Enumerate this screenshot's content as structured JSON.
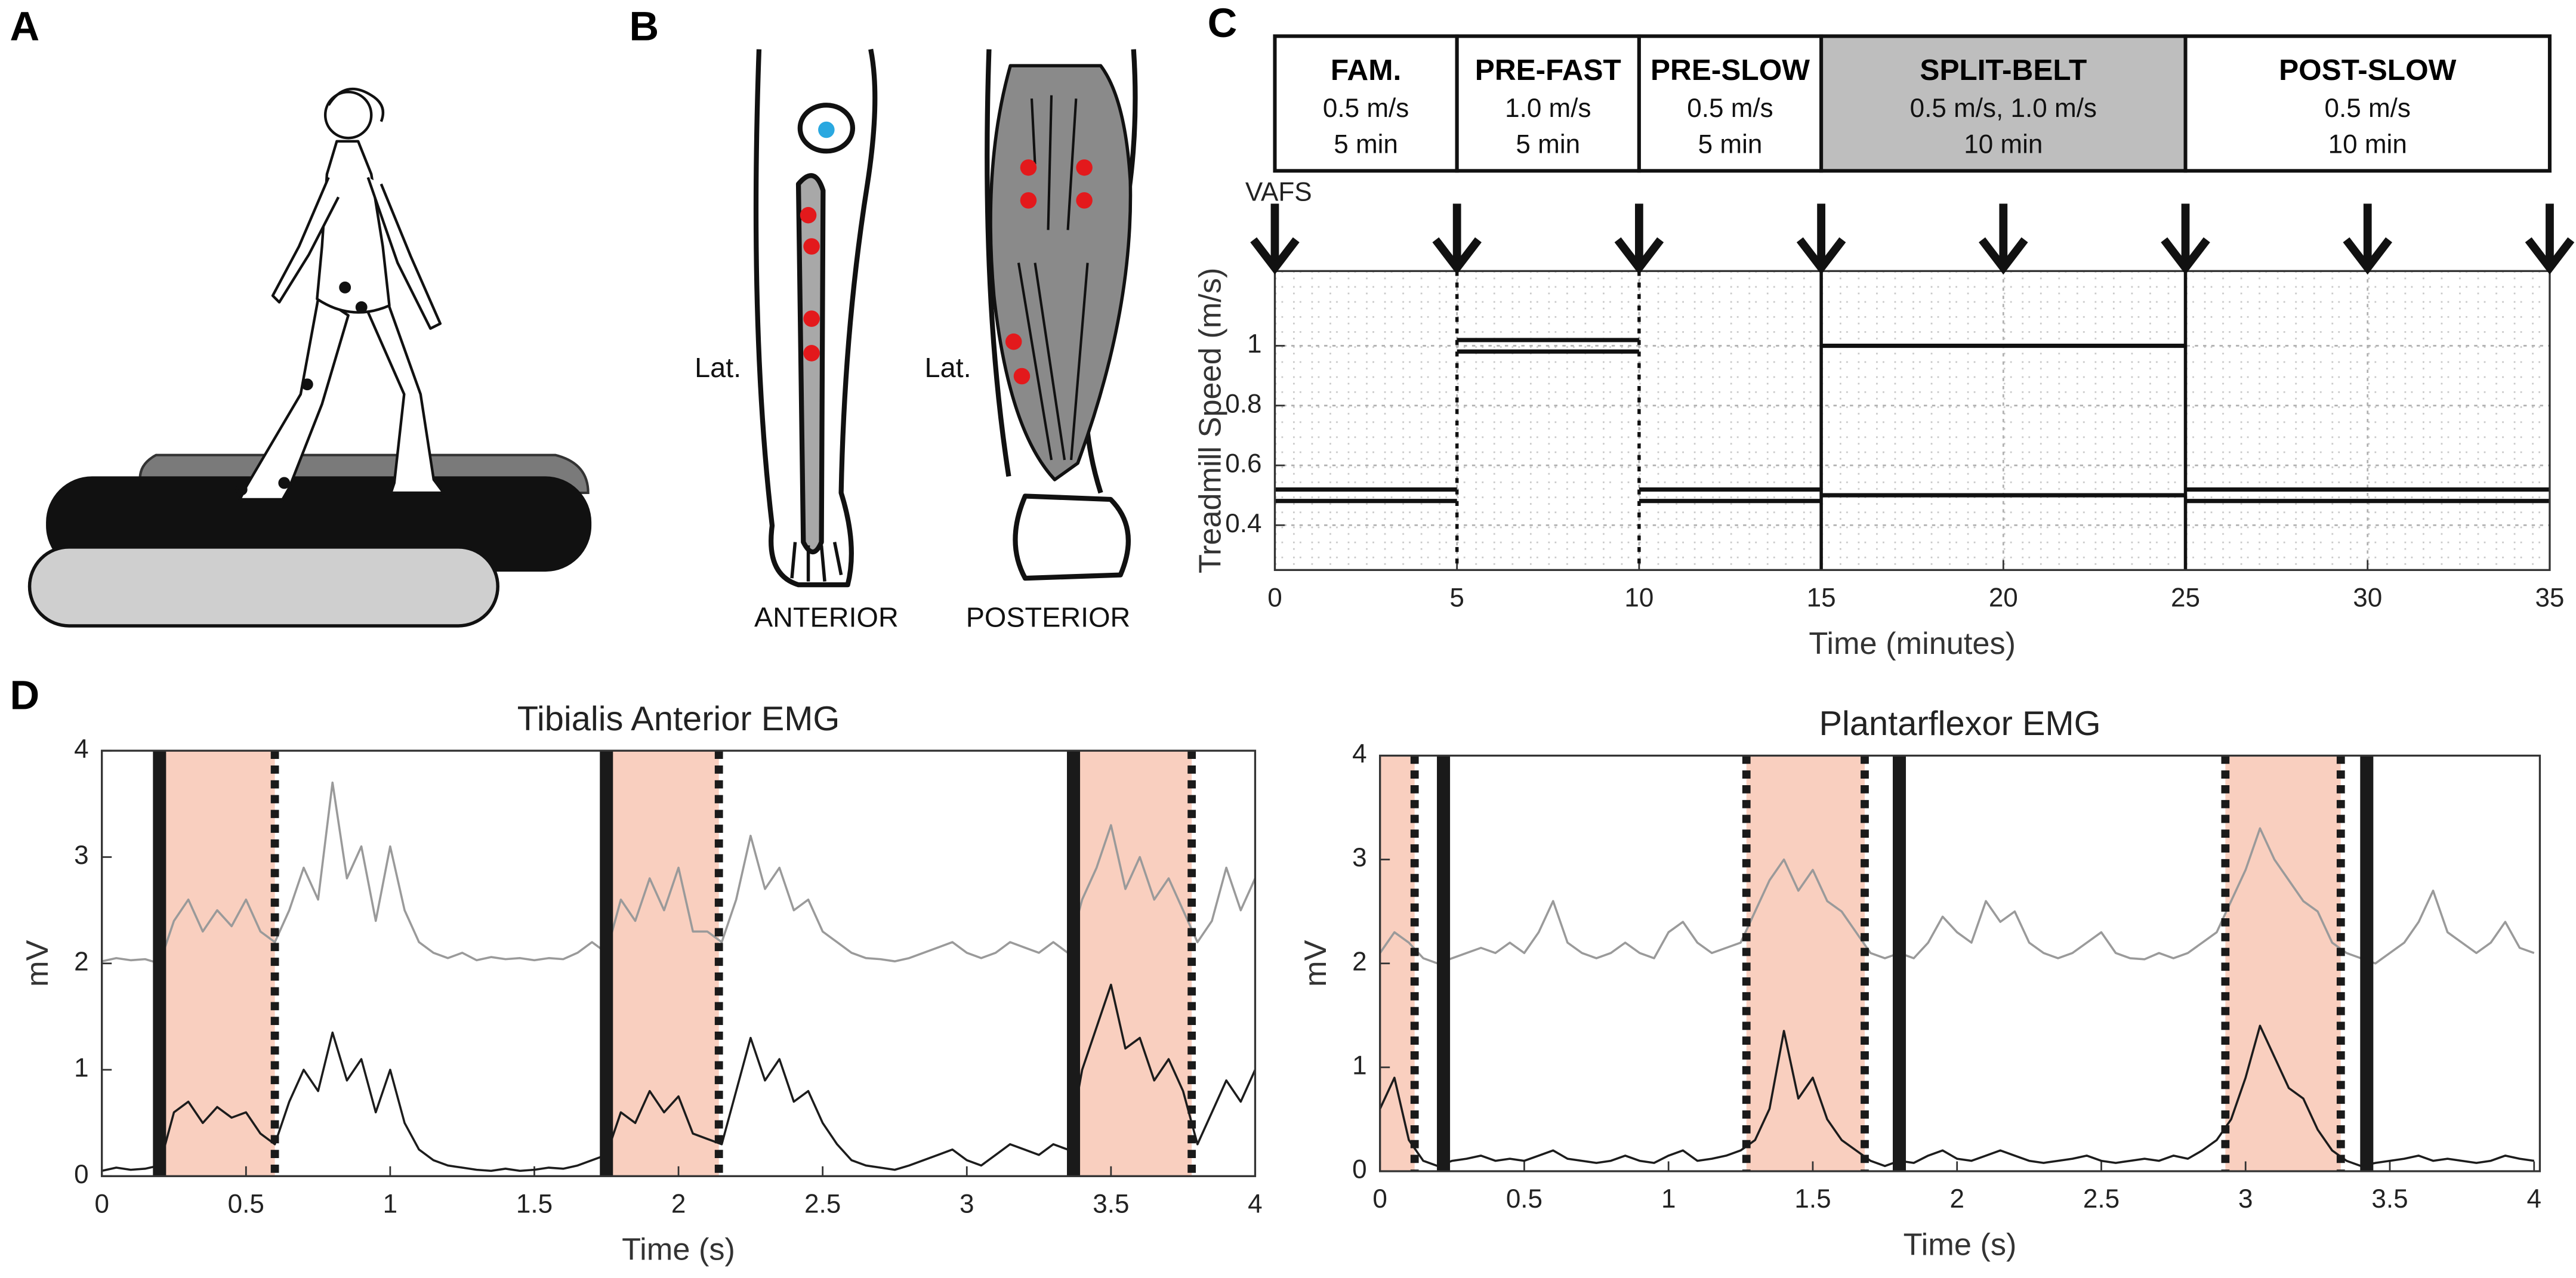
{
  "panel_labels": [
    "A",
    "B",
    "C",
    "D"
  ],
  "leg_labels": {
    "lateral_anterior": "Lat.",
    "lateral_posterior": "Lat.",
    "anterior": "ANTERIOR",
    "posterior": "POSTERIOR"
  },
  "protocol": {
    "arrow_label": "VAFS",
    "arrows_x": [
      0,
      5,
      10,
      15,
      20,
      25,
      30,
      35
    ],
    "phases": [
      {
        "name": "FAM.",
        "speed": "0.5 m/s",
        "duration": "5 min",
        "start": 0,
        "end": 5,
        "color": "#ffffff"
      },
      {
        "name": "PRE-FAST",
        "speed": "1.0 m/s",
        "duration": "5 min",
        "start": 5,
        "end": 10,
        "color": "#ffffff"
      },
      {
        "name": "PRE-SLOW",
        "speed": "0.5 m/s",
        "duration": "5 min",
        "start": 10,
        "end": 15,
        "color": "#ffffff"
      },
      {
        "name": "SPLIT-BELT",
        "speed": "0.5 m/s, 1.0 m/s",
        "duration": "10 min",
        "start": 15,
        "end": 25,
        "color": "#bebebe"
      },
      {
        "name": "POST-SLOW",
        "speed": "0.5 m/s",
        "duration": "10 min",
        "start": 25,
        "end": 35,
        "color": "#ffffff"
      }
    ]
  },
  "chart_data": [
    {
      "type": "line",
      "x_label": "Time (minutes)",
      "y_label": "Treadmill Speed (m/s)",
      "x": [
        0,
        5,
        5,
        5,
        10,
        10,
        10,
        15,
        15,
        15,
        25,
        25,
        25,
        35
      ],
      "series": [
        {
          "color": "#111111",
          "values": [
            0.5,
            0.5,
            null,
            1,
            1,
            null,
            0.5,
            0.5,
            null,
            1,
            1,
            null,
            0.5,
            0.5
          ]
        },
        {
          "color": "#111111",
          "values": [
            0.5,
            0.5,
            null,
            1,
            1,
            null,
            0.5,
            0.5,
            null,
            0.5,
            0.5,
            null,
            0.5,
            0.5
          ]
        }
      ],
      "xlim": [
        0,
        35
      ],
      "ylim": [
        0.25,
        1.25
      ],
      "xticks": [
        0,
        5,
        10,
        15,
        20,
        25,
        30,
        35
      ],
      "yticks": [
        0.4,
        0.6,
        0.8,
        1
      ],
      "grid": true,
      "phase_lines": [
        {
          "value": 5,
          "style": "dotted"
        },
        {
          "value": 10,
          "style": "dotted"
        },
        {
          "value": 15,
          "style": "solid"
        },
        {
          "value": 25,
          "style": "solid"
        }
      ]
    },
    {
      "type": "line",
      "title": "Tibialis Anterior EMG",
      "x_label": "Time (s)",
      "y_label": "mV",
      "x": [
        0,
        0.05,
        0.1,
        0.15,
        0.2,
        0.25,
        0.3,
        0.35,
        0.4,
        0.45,
        0.5,
        0.55,
        0.6,
        0.65,
        0.7,
        0.75,
        0.8,
        0.85,
        0.9,
        0.95,
        1,
        1.05,
        1.1,
        1.15,
        1.2,
        1.25,
        1.3,
        1.35,
        1.4,
        1.45,
        1.5,
        1.55,
        1.6,
        1.65,
        1.7,
        1.75,
        1.8,
        1.85,
        1.9,
        1.95,
        2,
        2.05,
        2.1,
        2.15,
        2.2,
        2.25,
        2.3,
        2.35,
        2.4,
        2.45,
        2.5,
        2.55,
        2.6,
        2.65,
        2.7,
        2.75,
        2.8,
        2.85,
        2.9,
        2.95,
        3,
        3.05,
        3.1,
        3.15,
        3.2,
        3.25,
        3.3,
        3.35,
        3.4,
        3.45,
        3.5,
        3.55,
        3.6,
        3.65,
        3.7,
        3.75,
        3.8,
        3.85,
        3.9,
        3.95,
        4
      ],
      "series": [
        {
          "color": "#9a9a9a",
          "values": [
            2.02,
            2.05,
            2.03,
            2.04,
            2.0,
            2.4,
            2.6,
            2.3,
            2.5,
            2.35,
            2.6,
            2.3,
            2.2,
            2.5,
            2.9,
            2.6,
            3.7,
            2.8,
            3.1,
            2.4,
            3.1,
            2.5,
            2.2,
            2.1,
            2.05,
            2.1,
            2.03,
            2.06,
            2.04,
            2.05,
            2.03,
            2.05,
            2.04,
            2.1,
            2.2,
            2.1,
            2.6,
            2.4,
            2.8,
            2.5,
            2.9,
            2.3,
            2.3,
            2.2,
            2.6,
            3.2,
            2.7,
            2.9,
            2.5,
            2.6,
            2.3,
            2.2,
            2.1,
            2.05,
            2.04,
            2.02,
            2.05,
            2.1,
            2.15,
            2.2,
            2.1,
            2.05,
            2.1,
            2.2,
            2.15,
            2.1,
            2.2,
            2.1,
            2.6,
            2.9,
            3.3,
            2.7,
            3.0,
            2.6,
            2.8,
            2.5,
            2.2,
            2.4,
            2.9,
            2.5,
            2.8
          ]
        },
        {
          "color": "#1c1c1c",
          "values": [
            0.05,
            0.08,
            0.06,
            0.07,
            0.1,
            0.6,
            0.7,
            0.5,
            0.65,
            0.55,
            0.6,
            0.4,
            0.3,
            0.7,
            1.0,
            0.8,
            1.35,
            0.9,
            1.1,
            0.6,
            1.0,
            0.5,
            0.25,
            0.15,
            0.1,
            0.08,
            0.06,
            0.05,
            0.07,
            0.05,
            0.06,
            0.08,
            0.07,
            0.1,
            0.15,
            0.2,
            0.6,
            0.5,
            0.8,
            0.6,
            0.75,
            0.4,
            0.35,
            0.3,
            0.8,
            1.3,
            0.9,
            1.1,
            0.7,
            0.8,
            0.5,
            0.3,
            0.15,
            0.1,
            0.08,
            0.06,
            0.1,
            0.15,
            0.2,
            0.25,
            0.15,
            0.1,
            0.2,
            0.3,
            0.25,
            0.2,
            0.3,
            0.25,
            1.0,
            1.4,
            1.8,
            1.2,
            1.3,
            0.9,
            1.1,
            0.8,
            0.3,
            0.6,
            0.9,
            0.7,
            1.0
          ]
        }
      ],
      "xlim": [
        0,
        4
      ],
      "ylim": [
        0,
        4
      ],
      "xticks": [
        0,
        0.5,
        1,
        1.5,
        2,
        2.5,
        3,
        3.5,
        4
      ],
      "yticks": [
        0,
        1,
        2,
        3,
        4
      ],
      "shade_color": "#f9cfbf",
      "event_color": "#1a1a1a",
      "shaded_regions": [
        [
          0.2,
          0.6
        ],
        [
          1.75,
          2.14
        ],
        [
          3.37,
          3.78
        ]
      ],
      "solid_events": [
        0.2,
        1.75,
        3.37
      ],
      "dotted_events": [
        0.6,
        2.14,
        3.78
      ]
    },
    {
      "type": "line",
      "title": "Plantarflexor EMG",
      "x_label": "Time (s)",
      "y_label": "mV",
      "x": [
        0,
        0.05,
        0.1,
        0.15,
        0.2,
        0.25,
        0.3,
        0.35,
        0.4,
        0.45,
        0.5,
        0.55,
        0.6,
        0.65,
        0.7,
        0.75,
        0.8,
        0.85,
        0.9,
        0.95,
        1,
        1.05,
        1.1,
        1.15,
        1.2,
        1.25,
        1.3,
        1.35,
        1.4,
        1.45,
        1.5,
        1.55,
        1.6,
        1.65,
        1.7,
        1.75,
        1.8,
        1.85,
        1.9,
        1.95,
        2,
        2.05,
        2.1,
        2.15,
        2.2,
        2.25,
        2.3,
        2.35,
        2.4,
        2.45,
        2.5,
        2.55,
        2.6,
        2.65,
        2.7,
        2.75,
        2.8,
        2.85,
        2.9,
        2.95,
        3,
        3.05,
        3.1,
        3.15,
        3.2,
        3.25,
        3.3,
        3.35,
        3.4,
        3.45,
        3.5,
        3.55,
        3.6,
        3.65,
        3.7,
        3.75,
        3.8,
        3.85,
        3.9,
        3.95,
        4
      ],
      "series": [
        {
          "color": "#9a9a9a",
          "values": [
            2.1,
            2.3,
            2.2,
            2.05,
            2.0,
            2.05,
            2.1,
            2.15,
            2.1,
            2.2,
            2.1,
            2.3,
            2.6,
            2.2,
            2.1,
            2.05,
            2.1,
            2.2,
            2.1,
            2.05,
            2.3,
            2.4,
            2.2,
            2.1,
            2.15,
            2.2,
            2.5,
            2.8,
            3.0,
            2.7,
            2.9,
            2.6,
            2.5,
            2.3,
            2.1,
            2.05,
            2.1,
            2.05,
            2.2,
            2.45,
            2.3,
            2.2,
            2.6,
            2.4,
            2.5,
            2.2,
            2.1,
            2.05,
            2.1,
            2.2,
            2.3,
            2.1,
            2.05,
            2.04,
            2.1,
            2.05,
            2.1,
            2.2,
            2.3,
            2.6,
            2.9,
            3.3,
            3.0,
            2.8,
            2.6,
            2.5,
            2.2,
            2.1,
            2.05,
            2.0,
            2.1,
            2.2,
            2.4,
            2.7,
            2.3,
            2.2,
            2.1,
            2.2,
            2.4,
            2.15,
            2.1
          ]
        },
        {
          "color": "#1c1c1c",
          "values": [
            0.6,
            0.9,
            0.3,
            0.1,
            0.05,
            0.1,
            0.12,
            0.15,
            0.1,
            0.12,
            0.1,
            0.15,
            0.2,
            0.12,
            0.1,
            0.08,
            0.1,
            0.15,
            0.1,
            0.08,
            0.15,
            0.2,
            0.1,
            0.12,
            0.15,
            0.2,
            0.3,
            0.6,
            1.35,
            0.7,
            0.9,
            0.5,
            0.3,
            0.2,
            0.1,
            0.05,
            0.1,
            0.08,
            0.15,
            0.2,
            0.12,
            0.1,
            0.15,
            0.2,
            0.15,
            0.1,
            0.08,
            0.1,
            0.12,
            0.15,
            0.1,
            0.08,
            0.1,
            0.12,
            0.1,
            0.15,
            0.12,
            0.2,
            0.3,
            0.5,
            0.9,
            1.4,
            1.1,
            0.8,
            0.7,
            0.4,
            0.2,
            0.1,
            0.05,
            0.08,
            0.1,
            0.12,
            0.15,
            0.1,
            0.12,
            0.1,
            0.08,
            0.1,
            0.15,
            0.12,
            0.1
          ]
        }
      ],
      "xlim": [
        0,
        4.02
      ],
      "ylim": [
        0,
        4
      ],
      "xticks": [
        0,
        0.5,
        1,
        1.5,
        2,
        2.5,
        3,
        3.5,
        4
      ],
      "yticks": [
        0,
        1,
        2,
        3,
        4
      ],
      "shade_color": "#f9cfbf",
      "event_color": "#1a1a1a",
      "shaded_regions": [
        [
          0,
          0.12
        ],
        [
          1.27,
          1.68
        ],
        [
          2.93,
          3.33
        ]
      ],
      "solid_events": [
        0.22,
        1.8,
        3.42
      ],
      "dotted_events": [
        0.12,
        1.27,
        1.68,
        2.93,
        3.33
      ]
    }
  ]
}
